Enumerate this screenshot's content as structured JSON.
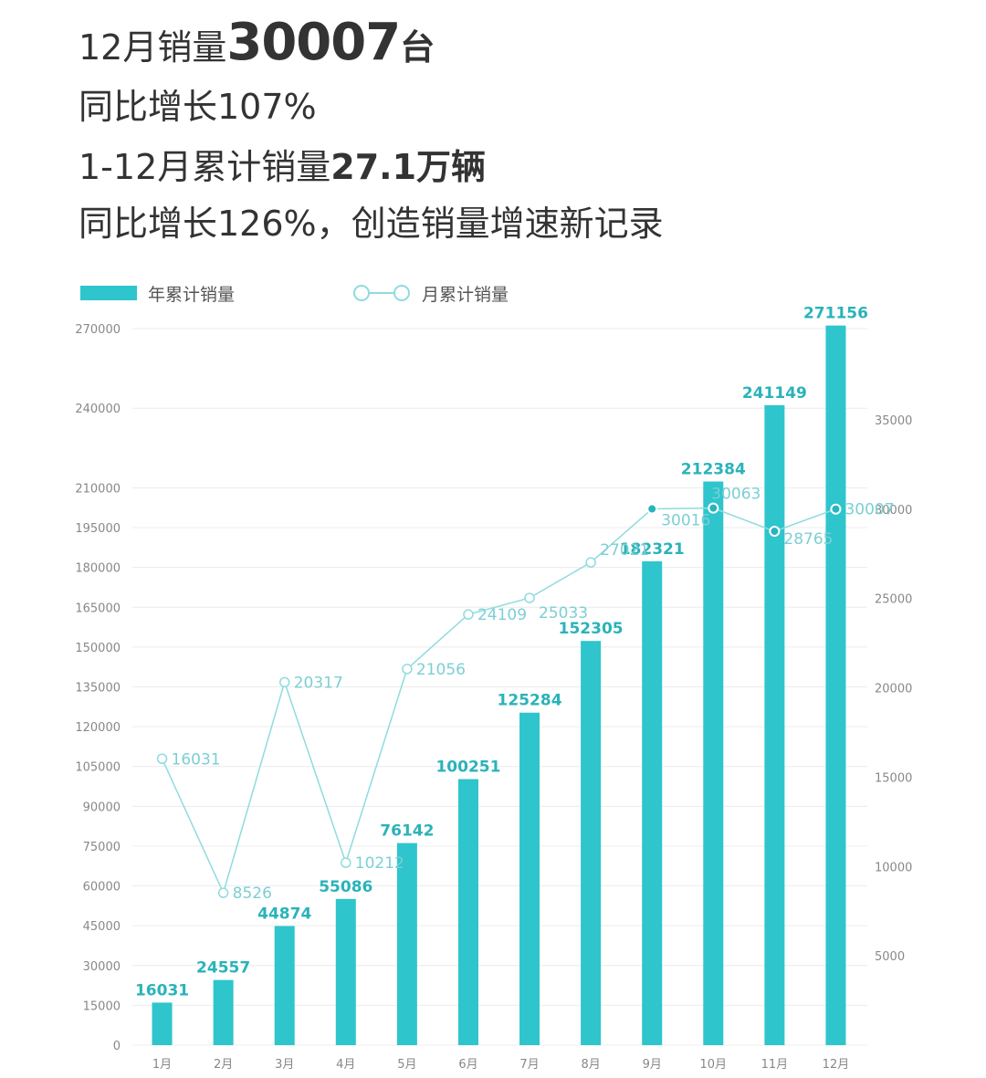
{
  "header": {
    "line1_prefix": "12月销量",
    "line1_value": "30007",
    "line1_unit": "台",
    "line2": "同比增长107%",
    "line3_prefix": "1-12月累计销量",
    "line3_value": "27.1万辆",
    "line4": "同比增长126%，创造销量增速新记录"
  },
  "legend": {
    "bar_label": "年累计销量",
    "line_label": "月累计销量"
  },
  "colors": {
    "bar": "#2ec5cc",
    "line": "#8fdbdf",
    "point_fill": "#ffffff",
    "bar_label": "#2ab3b9",
    "line_label": "#7ccfd4",
    "grid": "#ececec",
    "axis_text": "#888888"
  },
  "chart_data": {
    "type": "bar",
    "categories": [
      "1月",
      "2月",
      "3月",
      "4月",
      "5月",
      "6月",
      "7月",
      "8月",
      "9月",
      "10月",
      "11月",
      "12月"
    ],
    "series": [
      {
        "name": "年累计销量",
        "type": "bar",
        "axis": "left",
        "values": [
          16031,
          24557,
          44874,
          55086,
          76142,
          100251,
          125284,
          152305,
          182321,
          212384,
          241149,
          271156
        ]
      },
      {
        "name": "月累计销量",
        "type": "line",
        "axis": "right",
        "values": [
          16031,
          8526,
          20317,
          10212,
          21056,
          24109,
          25033,
          27021,
          30016,
          30063,
          28765,
          30007
        ]
      }
    ],
    "left_ticks": [
      0,
      15000,
      30000,
      45000,
      60000,
      75000,
      90000,
      105000,
      120000,
      135000,
      150000,
      165000,
      180000,
      195000,
      210000,
      240000,
      270000
    ],
    "right_ticks": [
      5000,
      10000,
      15000,
      20000,
      25000,
      30000,
      35000
    ],
    "grid": true,
    "legend_position": "top-left"
  }
}
